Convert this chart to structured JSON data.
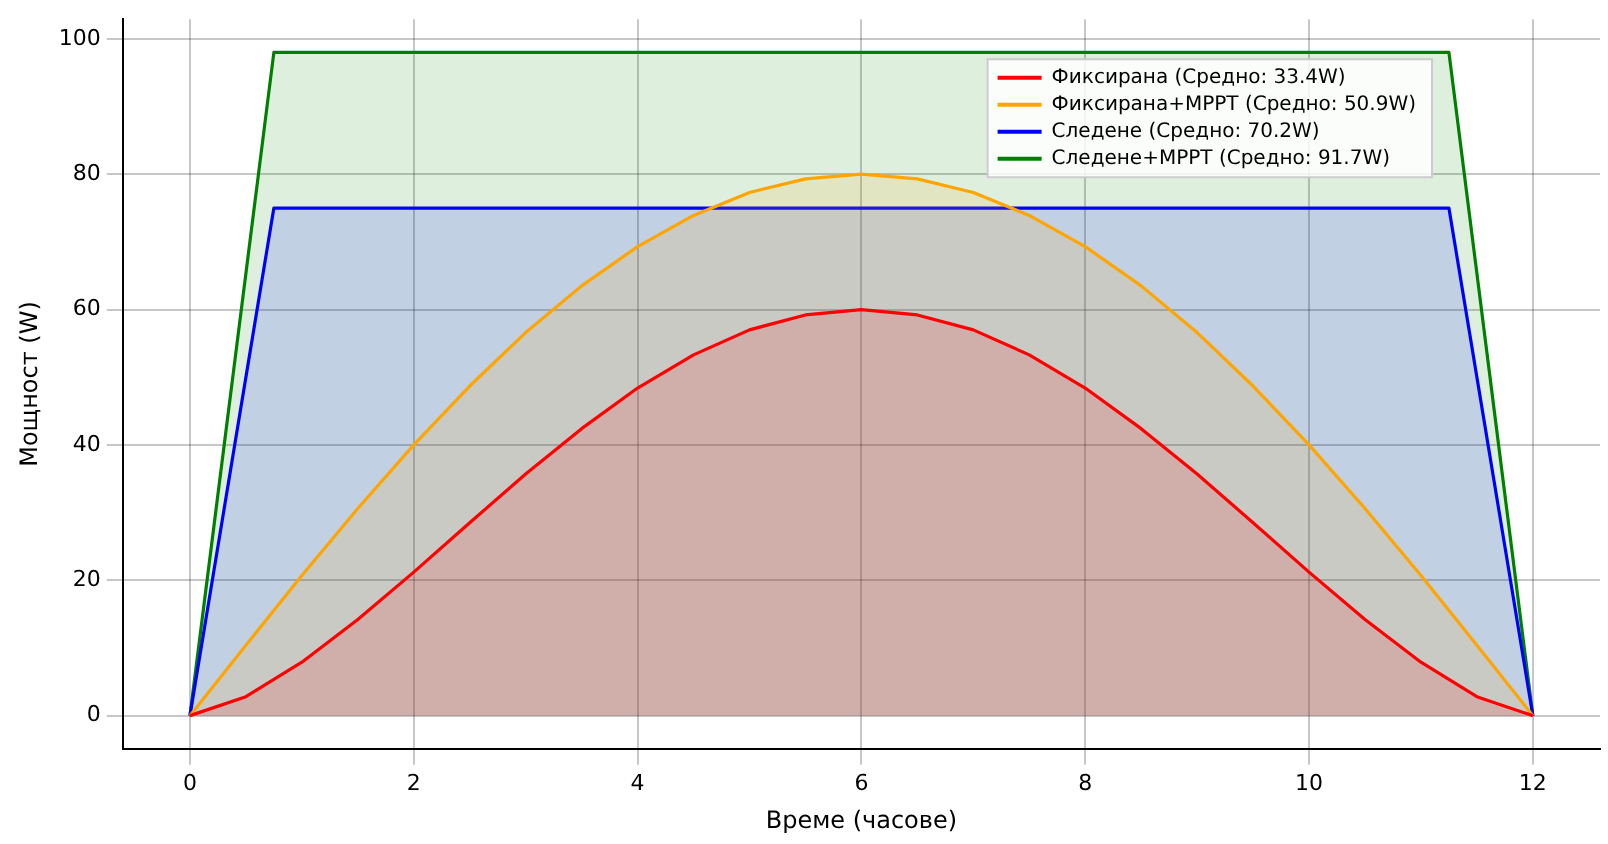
{
  "chart_data": {
    "type": "area",
    "xlabel": "Време (часове)",
    "ylabel": "Мощност (W)",
    "xlim": [
      -0.6,
      12.6
    ],
    "xticks": [
      0,
      2,
      4,
      6,
      8,
      10,
      12
    ],
    "ylim": [
      -4.9,
      102.9
    ],
    "yticks": [
      0,
      20,
      40,
      60,
      80,
      100
    ],
    "grid": true,
    "legend": "top right",
    "marker": "none",
    "line_style": "solid",
    "series": [
      {
        "name": "Фиксирана (Средно: 33.4W)",
        "color": "#ff0000",
        "x": [
          0,
          0.5,
          1,
          1.5,
          2,
          2.5,
          3,
          3.5,
          4,
          4.5,
          5,
          5.5,
          6,
          6.5,
          7,
          7.5,
          8,
          8.5,
          9,
          9.5,
          10,
          10.5,
          11,
          11.5,
          12
        ],
        "values": [
          0,
          2.8,
          7.9,
          14.2,
          21.2,
          28.5,
          35.7,
          42.4,
          48.4,
          53.3,
          57,
          59.2,
          60,
          59.2,
          57,
          53.3,
          48.4,
          42.4,
          35.7,
          28.5,
          21.2,
          14.2,
          7.9,
          2.8,
          0
        ]
      },
      {
        "name": "Фиксирана+MPPT (Средно: 50.9W)",
        "color": "#ffa500",
        "x": [
          0,
          0.5,
          1,
          1.5,
          2,
          2.5,
          3,
          3.5,
          4,
          4.5,
          5,
          5.5,
          6,
          6.5,
          7,
          7.5,
          8,
          8.5,
          9,
          9.5,
          10,
          10.5,
          11,
          11.5,
          12
        ],
        "values": [
          0,
          10.4,
          20.7,
          30.6,
          40,
          48.7,
          56.6,
          63.5,
          69.3,
          73.9,
          77.3,
          79.3,
          80,
          79.3,
          77.3,
          73.9,
          69.3,
          63.5,
          56.6,
          48.7,
          40,
          30.6,
          20.7,
          10.4,
          0
        ]
      },
      {
        "name": "Следене (Средно: 70.2W)",
        "color": "#0000ff",
        "x": [
          0,
          0.75,
          11.25,
          12
        ],
        "values": [
          0,
          75,
          75,
          0
        ]
      },
      {
        "name": "Следене+MPPT (Средно: 91.7W)",
        "color": "#008000",
        "x": [
          0,
          0.75,
          11.25,
          12
        ],
        "values": [
          0,
          98,
          98,
          0
        ]
      }
    ]
  }
}
